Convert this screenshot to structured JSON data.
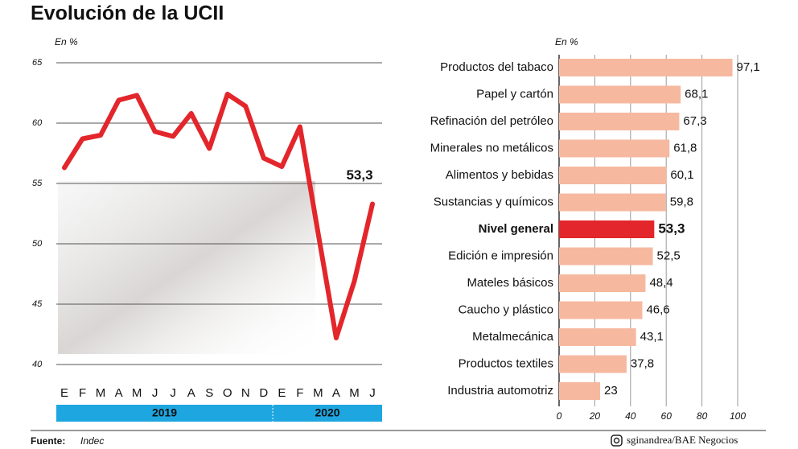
{
  "title": "Evolución de la UCII",
  "source_label": "Fuente:",
  "source": "Indec",
  "credit": "sginandrea/BAE Negocios",
  "chart_data": [
    {
      "type": "line",
      "ylabel": "En %",
      "categories": [
        "E",
        "F",
        "M",
        "A",
        "M",
        "J",
        "J",
        "A",
        "S",
        "O",
        "N",
        "D",
        "E",
        "F",
        "M",
        "A",
        "M",
        "J"
      ],
      "groups": [
        "2019",
        "2020"
      ],
      "values": [
        56.3,
        58.7,
        59.0,
        61.9,
        62.3,
        59.3,
        58.9,
        60.8,
        57.9,
        62.4,
        61.4,
        57.1,
        56.4,
        59.7,
        50.9,
        42.2,
        46.9,
        53.3
      ],
      "value_labels": [
        null,
        null,
        null,
        null,
        null,
        null,
        null,
        null,
        null,
        null,
        null,
        null,
        null,
        null,
        null,
        null,
        null,
        "53,3"
      ],
      "color": "#e3262b",
      "ylim": [
        40,
        65
      ],
      "yticks": [
        40,
        45,
        50,
        55,
        60,
        65
      ],
      "grid": true
    },
    {
      "type": "hbar",
      "xlabel": "En %",
      "categories": [
        "Productos del tabaco",
        "Papel y cartón",
        "Refinación del petróleo",
        "Minerales no metálicos",
        "Alimentos y bebidas",
        "Sustancias y químicos",
        "Nivel general",
        "Edición e impresión",
        "Mateles básicos",
        "Caucho y plástico",
        "Metalmecánica",
        "Productos textiles",
        "Industria automotriz"
      ],
      "values": [
        97.1,
        68.1,
        67.3,
        61.8,
        60.1,
        59.8,
        53.3,
        52.5,
        48.4,
        46.6,
        43.1,
        37.8,
        23
      ],
      "value_labels": [
        "97,1",
        "68,1",
        "67,3",
        "61,8",
        "60,1",
        "59,8",
        "53,3",
        "52,5",
        "48,4",
        "46,6",
        "43,1",
        "37,8",
        "23"
      ],
      "color": "#f6b9a0",
      "colors": [
        "#f6b9a0",
        "#f6b9a0",
        "#f6b9a0",
        "#f6b9a0",
        "#f6b9a0",
        "#f6b9a0",
        "#e3262b",
        "#f6b9a0",
        "#f6b9a0",
        "#f6b9a0",
        "#f6b9a0",
        "#f6b9a0",
        "#f6b9a0"
      ],
      "xlim": [
        0,
        100
      ],
      "xticks": [
        0,
        20,
        40,
        60,
        80,
        100
      ],
      "grid": true
    }
  ]
}
